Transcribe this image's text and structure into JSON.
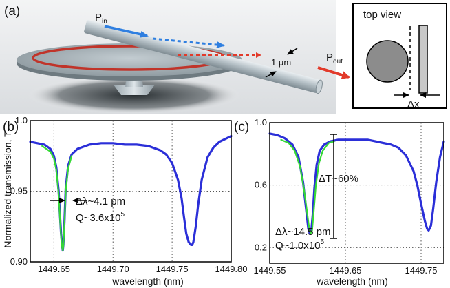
{
  "panel_a": {
    "label": "(a)",
    "p_in_main": "P",
    "p_in_sub": "in",
    "p_out_main": "P",
    "p_out_sub": "out",
    "thickness_label": "1 μm",
    "top_view": {
      "title": "top view",
      "delta_x": "Δx"
    },
    "colors": {
      "input_arrow": "#2f7fe0",
      "output_arrow": "#e23a2a",
      "ring": "#c0342a"
    }
  },
  "chart_data": [
    {
      "type": "line",
      "panel_label": "(b)",
      "xlabel": "wavelength (nm)",
      "ylabel": "Normalized transmission, T",
      "xlim": [
        1449.63,
        1449.8
      ],
      "ylim": [
        0.9,
        1.0
      ],
      "xticks": [
        "1449.65",
        "1449.70",
        "1449.75",
        "1449.80"
      ],
      "yticks": [
        "0.90",
        "0.95",
        "1.0"
      ],
      "grid": true,
      "series": [
        {
          "role": "measured",
          "color": "#2b2fd8",
          "x": [
            1449.63,
            1449.636,
            1449.642,
            1449.647,
            1449.65,
            1449.652,
            1449.654,
            1449.655,
            1449.656,
            1449.657,
            1449.6575,
            1449.658,
            1449.659,
            1449.66,
            1449.662,
            1449.665,
            1449.67,
            1449.68,
            1449.69,
            1449.7,
            1449.71,
            1449.72,
            1449.73,
            1449.74,
            1449.745,
            1449.75,
            1449.755,
            1449.758,
            1449.76,
            1449.762,
            1449.764,
            1449.766,
            1449.767,
            1449.768,
            1449.77,
            1449.772,
            1449.775,
            1449.78,
            1449.785,
            1449.79,
            1449.795,
            1449.8
          ],
          "y": [
            0.985,
            0.984,
            0.983,
            0.98,
            0.975,
            0.967,
            0.95,
            0.935,
            0.92,
            0.911,
            0.908,
            0.912,
            0.93,
            0.952,
            0.968,
            0.976,
            0.98,
            0.983,
            0.984,
            0.984,
            0.983,
            0.983,
            0.982,
            0.979,
            0.976,
            0.97,
            0.958,
            0.945,
            0.932,
            0.92,
            0.914,
            0.912,
            0.912,
            0.914,
            0.925,
            0.94,
            0.958,
            0.974,
            0.981,
            0.985,
            0.987,
            0.989
          ]
        },
        {
          "role": "fit",
          "color": "#35d935",
          "x": [
            1449.64,
            1449.647,
            1449.65,
            1449.652,
            1449.654,
            1449.655,
            1449.656,
            1449.657,
            1449.6575,
            1449.658,
            1449.659,
            1449.66,
            1449.662,
            1449.665
          ],
          "y": [
            0.982,
            0.978,
            0.973,
            0.965,
            0.948,
            0.933,
            0.918,
            0.91,
            0.908,
            0.911,
            0.928,
            0.95,
            0.966,
            0.975
          ]
        }
      ],
      "annotations": {
        "linewidth": "Δλ~4.1 pm",
        "q_main": "Q~3.6x10",
        "q_exp": "5"
      }
    },
    {
      "type": "line",
      "panel_label": "(c)",
      "xlabel": "wavelength (nm)",
      "ylabel": "",
      "xlim": [
        1449.55,
        1449.78
      ],
      "ylim": [
        0.1,
        1.0
      ],
      "xticks": [
        "1449.55",
        "1449.65",
        "1449.75"
      ],
      "yticks": [
        "0.2",
        "0.6",
        "1.0"
      ],
      "grid": true,
      "series": [
        {
          "role": "measured",
          "color": "#2b2fd8",
          "x": [
            1449.55,
            1449.56,
            1449.57,
            1449.58,
            1449.588,
            1449.594,
            1449.598,
            1449.601,
            1449.603,
            1449.605,
            1449.607,
            1449.609,
            1449.612,
            1449.616,
            1449.622,
            1449.63,
            1449.64,
            1449.65,
            1449.66,
            1449.67,
            1449.68,
            1449.69,
            1449.7,
            1449.71,
            1449.72,
            1449.73,
            1449.74,
            1449.745,
            1449.75,
            1449.755,
            1449.758,
            1449.76,
            1449.763,
            1449.766,
            1449.77,
            1449.775,
            1449.78
          ],
          "y": [
            0.93,
            0.92,
            0.9,
            0.86,
            0.78,
            0.62,
            0.45,
            0.32,
            0.29,
            0.31,
            0.42,
            0.58,
            0.73,
            0.82,
            0.86,
            0.88,
            0.89,
            0.89,
            0.89,
            0.89,
            0.89,
            0.88,
            0.87,
            0.86,
            0.84,
            0.79,
            0.69,
            0.6,
            0.48,
            0.37,
            0.32,
            0.31,
            0.34,
            0.45,
            0.62,
            0.78,
            0.88
          ]
        },
        {
          "role": "fit",
          "color": "#35d935",
          "x": [
            1449.565,
            1449.575,
            1449.583,
            1449.59,
            1449.595,
            1449.599,
            1449.602,
            1449.604,
            1449.606,
            1449.608,
            1449.611,
            1449.615,
            1449.62,
            1449.628,
            1449.635
          ],
          "y": [
            0.89,
            0.87,
            0.82,
            0.72,
            0.58,
            0.44,
            0.33,
            0.29,
            0.31,
            0.42,
            0.6,
            0.74,
            0.82,
            0.87,
            0.88
          ]
        }
      ],
      "annotations": {
        "delta_t": "ΔT~60%",
        "linewidth": "Δλ~14.5 pm",
        "q_main": "Q~1.0x10",
        "q_exp": "5"
      }
    }
  ]
}
